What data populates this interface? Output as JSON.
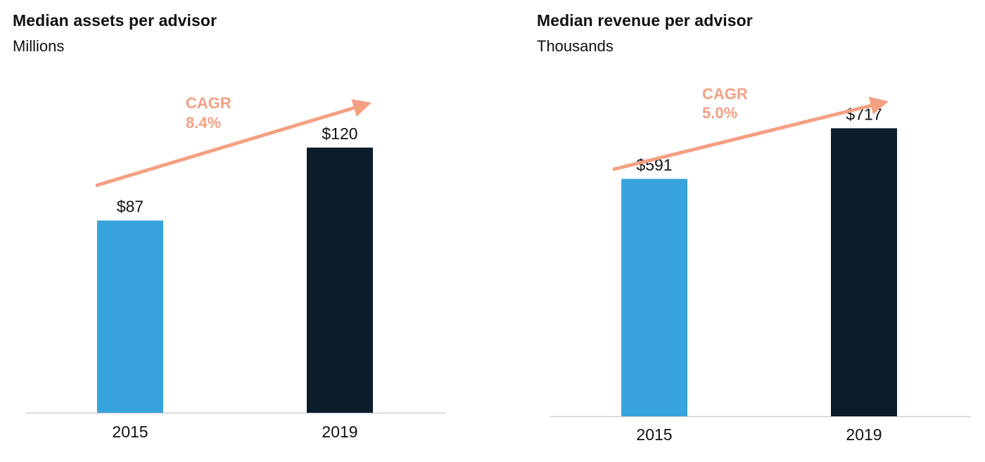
{
  "colors": {
    "bar_2015": "#38a3dc",
    "bar_2019": "#0b1c2a",
    "cagr_accent": "#f4a083",
    "axis": "#cfcfcf",
    "text": "#111111"
  },
  "chart_data": [
    {
      "type": "bar",
      "title": "Median assets per advisor",
      "subtitle": "Millions",
      "categories": [
        "2015",
        "2019"
      ],
      "values": [
        87,
        120
      ],
      "value_labels": [
        "$87",
        "$120"
      ],
      "ylim": [
        0,
        140
      ],
      "grid": false,
      "legend": "none",
      "annotation": {
        "label": "CAGR",
        "value": "8.4%"
      }
    },
    {
      "type": "bar",
      "title": "Median revenue per advisor",
      "subtitle": "Thousands",
      "categories": [
        "2015",
        "2019"
      ],
      "values": [
        591,
        717
      ],
      "value_labels": [
        "$591",
        "$717"
      ],
      "ylim": [
        0,
        800
      ],
      "grid": false,
      "legend": "none",
      "annotation": {
        "label": "CAGR",
        "value": "5.0%"
      }
    }
  ]
}
